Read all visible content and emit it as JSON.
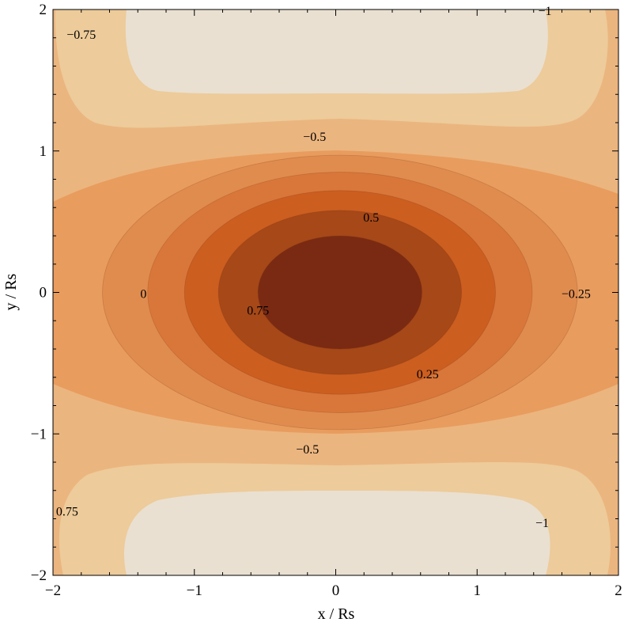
{
  "chart_data": {
    "type": "contour",
    "xlabel": "x / Rs",
    "ylabel": "y / Rs",
    "xlim": [
      -2,
      2
    ],
    "ylim": [
      -2,
      2
    ],
    "x_ticks": [
      -2,
      -1,
      0,
      1,
      2
    ],
    "y_ticks": [
      -2,
      -1,
      0,
      1,
      2
    ],
    "x_tick_labels": [
      "−2",
      "−1",
      "0",
      "1",
      "2"
    ],
    "y_tick_labels": [
      "−2",
      "−1",
      "0",
      "1",
      "2"
    ],
    "grid": false,
    "color_scale": [
      "#E9E0D1",
      "#EDCB9A",
      "#EBB57F",
      "#E89C5D",
      "#E08C4F",
      "#D9773A",
      "#CC5E20",
      "#A64818",
      "#7A2A12"
    ],
    "bands": [
      {
        "level": "max",
        "color": "#7A2A12",
        "rx": 0.58,
        "ry": 0.4,
        "cx": 0.03
      },
      {
        "level": "0.75",
        "color": "#A64818",
        "rx": 0.86,
        "ry": 0.58,
        "cx": 0.03
      },
      {
        "level": "0.5",
        "color": "#CC5E20",
        "rx": 1.1,
        "ry": 0.72,
        "cx": 0.03
      },
      {
        "level": "0.25",
        "color": "#D9773A",
        "rx": 1.36,
        "ry": 0.85,
        "cx": 0.03
      },
      {
        "level": "0",
        "color": "#E08C4F",
        "rx": 1.68,
        "ry": 0.97,
        "cx": 0.03
      }
    ],
    "contour_labels": [
      {
        "text": "−0.75",
        "x": -1.8,
        "y": 1.82
      },
      {
        "text": "−1",
        "x": 1.48,
        "y": 1.99
      },
      {
        "text": "−0.5",
        "x": -0.15,
        "y": 1.1
      },
      {
        "text": "0.5",
        "x": 0.25,
        "y": 0.53
      },
      {
        "text": "0",
        "x": -1.36,
        "y": -0.01
      },
      {
        "text": "0.75",
        "x": -0.55,
        "y": -0.13
      },
      {
        "text": "−0.25",
        "x": 1.7,
        "y": -0.01
      },
      {
        "text": "0.25",
        "x": 0.65,
        "y": -0.58
      },
      {
        "text": "−0.5",
        "x": -0.2,
        "y": -1.11
      },
      {
        "text": "0.75",
        "x": -1.9,
        "y": -1.55
      },
      {
        "text": "−1",
        "x": 1.46,
        "y": -1.63
      }
    ]
  }
}
